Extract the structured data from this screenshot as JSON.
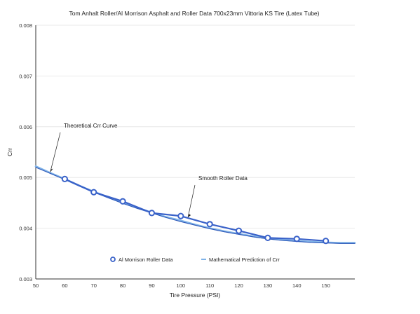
{
  "chart_data": {
    "type": "line",
    "title": "Tom Anhalt Roller/Al Morrison Asphalt and Roller Data 700x23mm Vittoria KS Tire (Latex Tube)",
    "xlabel": "Tire Pressure (PSI)",
    "ylabel": "Crr",
    "xlim": [
      50,
      160
    ],
    "ylim": [
      0.003,
      0.008
    ],
    "x_ticks": [
      "50",
      "60",
      "70",
      "80",
      "90",
      "100",
      "110",
      "120",
      "130",
      "140",
      "150"
    ],
    "y_ticks": [
      "0.003",
      "0.004",
      "0.005",
      "0.006",
      "0.007",
      "0.008"
    ],
    "grid": "horizontal",
    "legend_position": "bottom-center",
    "series": [
      {
        "name": "Al Morrison Roller Data",
        "style": "line-with-circle-markers",
        "color": "#3a62c9",
        "x": [
          60,
          70,
          80,
          90,
          100,
          110,
          120,
          130,
          140,
          150
        ],
        "y": [
          0.00497,
          0.00471,
          0.00453,
          0.0043,
          0.00424,
          0.00408,
          0.00395,
          0.00381,
          0.00379,
          0.00375
        ]
      },
      {
        "name": "Mathematical Prediction of Crr",
        "style": "line",
        "color": "#7fb3e8",
        "x": [
          50,
          55,
          60,
          65,
          70,
          75,
          80,
          85,
          90,
          95,
          100,
          105,
          110,
          115,
          120,
          125,
          130,
          135,
          140,
          145,
          150,
          155,
          160
        ],
        "y": [
          0.00522,
          0.00509,
          0.00497,
          0.00484,
          0.00472,
          0.00461,
          0.0045,
          0.0044,
          0.00431,
          0.00422,
          0.00415,
          0.00407,
          0.004,
          0.00394,
          0.00389,
          0.00384,
          0.0038,
          0.00377,
          0.00375,
          0.00373,
          0.00372,
          0.00371,
          0.00371
        ]
      },
      {
        "name": "Theoretical Crr Curve",
        "style": "line",
        "color": "#2f58b8",
        "x": [
          50,
          55,
          60,
          65,
          70,
          75,
          80,
          85,
          90,
          95,
          100,
          105,
          110,
          115,
          120,
          125,
          130,
          135,
          140,
          145,
          150,
          155,
          160
        ],
        "y": [
          0.0052,
          0.00508,
          0.00496,
          0.00483,
          0.00471,
          0.0046,
          0.00449,
          0.00439,
          0.0043,
          0.00421,
          0.00413,
          0.00406,
          0.00399,
          0.00393,
          0.00388,
          0.00383,
          0.00379,
          0.00376,
          0.00374,
          0.00372,
          0.00371,
          0.0037,
          0.0037
        ]
      }
    ],
    "annotations": [
      {
        "text": "Theoretical Crr Curve",
        "x": 55,
        "y": 0.00516
      },
      {
        "text": "Smooth Roller Data",
        "x": 102,
        "y": 0.00416
      }
    ]
  }
}
